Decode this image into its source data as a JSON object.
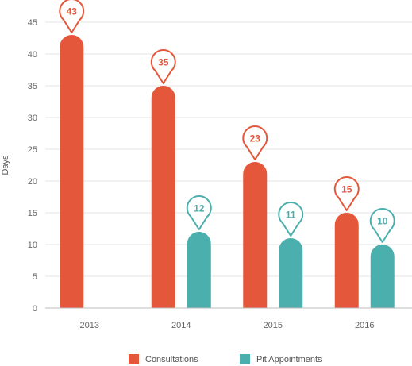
{
  "chart_data": {
    "type": "bar",
    "title": "",
    "xlabel": "",
    "ylabel": "Days",
    "ylim": [
      0,
      45
    ],
    "yticks": [
      0,
      5,
      10,
      15,
      20,
      25,
      30,
      35,
      40,
      45
    ],
    "grid": true,
    "legend_position": "bottom",
    "categories": [
      "2013",
      "2014",
      "2015",
      "2016"
    ],
    "series": [
      {
        "name": "Consultations",
        "color": "#e5573a",
        "values": [
          43,
          35,
          23,
          15
        ]
      },
      {
        "name": "Pit Appointments",
        "color": "#4bafad",
        "values": [
          null,
          12,
          11,
          10
        ]
      }
    ],
    "data_labels": "pin-marker"
  }
}
